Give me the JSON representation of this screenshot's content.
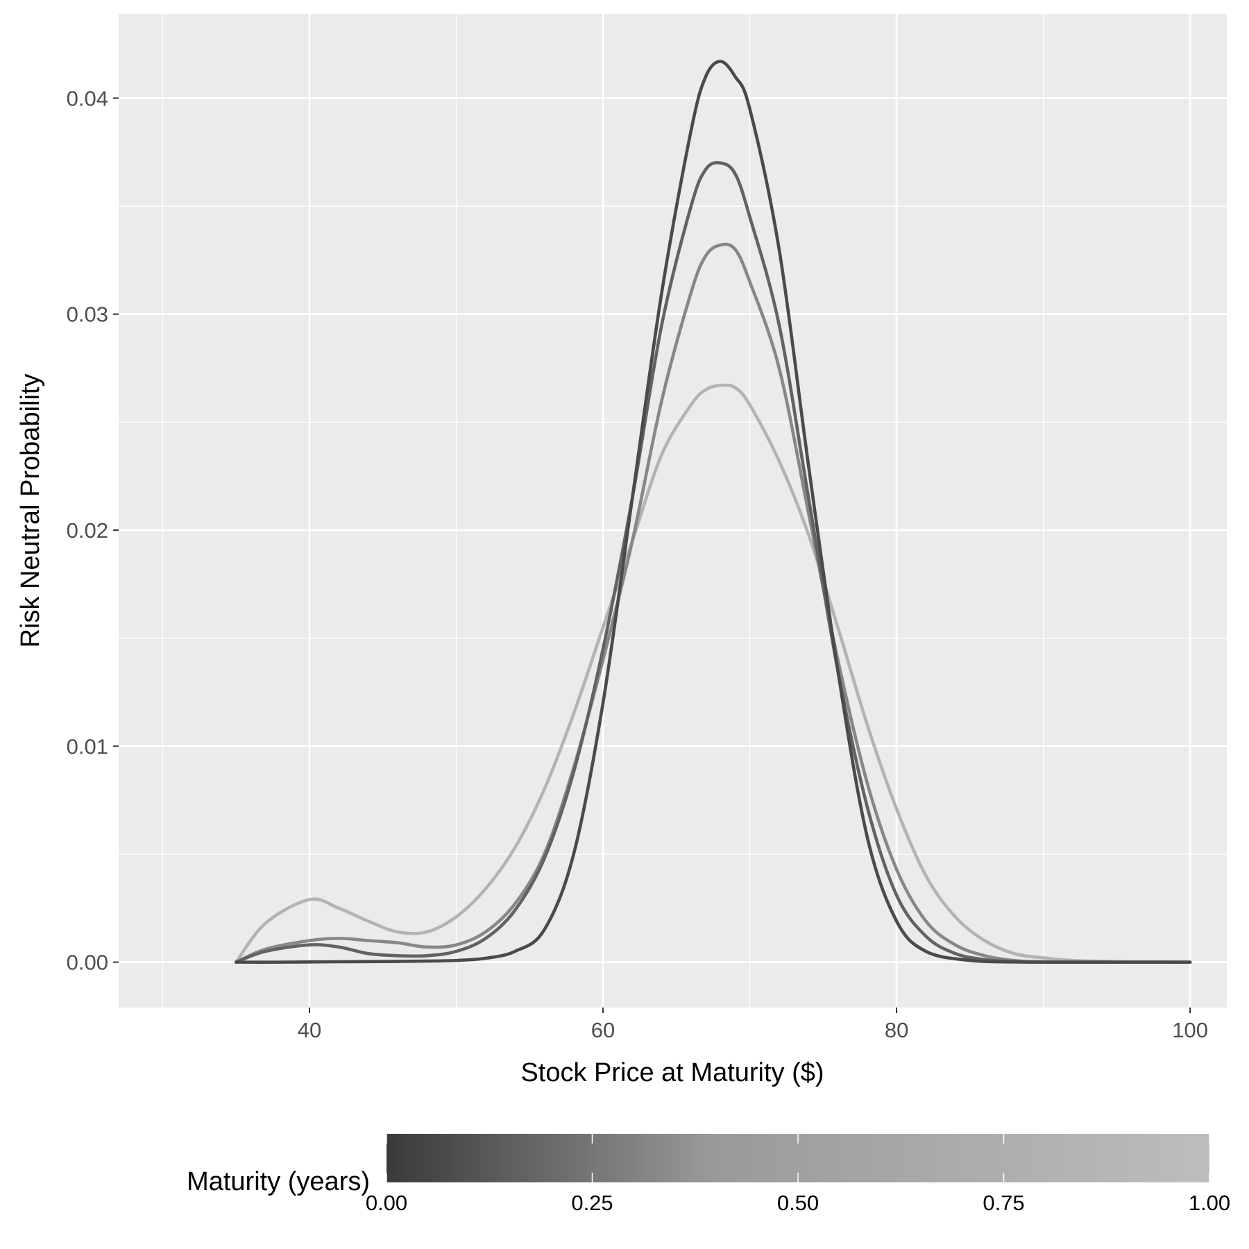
{
  "chart_data": {
    "type": "line",
    "title": "",
    "xlabel": "Stock Price at Maturity ($)",
    "ylabel": "Risk Neutral Probability",
    "xlim": [
      27,
      102.5
    ],
    "ylim": [
      -0.0021,
      0.0439
    ],
    "x_ticks": [
      40,
      60,
      80,
      100
    ],
    "x_tick_labels": [
      "40",
      "60",
      "80",
      "100"
    ],
    "x_minor_ticks": [
      30,
      50,
      70,
      90
    ],
    "y_ticks": [
      0,
      0.01,
      0.02,
      0.03,
      0.04
    ],
    "y_tick_labels": [
      "0.00",
      "0.01",
      "0.02",
      "0.03",
      "0.04"
    ],
    "y_minor_ticks": [
      0.005,
      0.015,
      0.025,
      0.035
    ],
    "grid": true,
    "panel_background": "#ebebeb",
    "grid_color": "#ffffff",
    "legend": {
      "position": "bottom",
      "title": "Maturity (years)",
      "type": "colorbar",
      "ticks": [
        0,
        0.25,
        0.5,
        0.75,
        1
      ],
      "tick_labels": [
        "0.00",
        "0.25",
        "0.50",
        "0.75",
        "1.00"
      ],
      "low_color": "#3a3a3a",
      "high_color": "#bdbdbd"
    },
    "series": [
      {
        "maturity": 0.25,
        "color": "#4a4a4a",
        "points": [
          [
            35,
            0
          ],
          [
            38,
            0
          ],
          [
            40,
            1e-05
          ],
          [
            42,
            2e-05
          ],
          [
            45,
            3e-05
          ],
          [
            48,
            5e-05
          ],
          [
            50,
            8e-05
          ],
          [
            52,
            0.00018
          ],
          [
            54,
            0.0005
          ],
          [
            56,
            0.0015
          ],
          [
            58,
            0.005
          ],
          [
            60,
            0.012
          ],
          [
            62,
            0.0215
          ],
          [
            64,
            0.031
          ],
          [
            66,
            0.0385
          ],
          [
            67,
            0.041
          ],
          [
            68,
            0.0417
          ],
          [
            69,
            0.041
          ],
          [
            70,
            0.0395
          ],
          [
            72,
            0.033
          ],
          [
            74,
            0.023
          ],
          [
            76,
            0.0135
          ],
          [
            78,
            0.0058
          ],
          [
            80,
            0.0019
          ],
          [
            82,
            0.0005
          ],
          [
            85,
            8e-05
          ],
          [
            88,
            1e-05
          ],
          [
            90,
            0
          ],
          [
            95,
            0
          ],
          [
            100,
            0
          ]
        ]
      },
      {
        "maturity": 0.375,
        "color": "#626262",
        "points": [
          [
            35,
            0
          ],
          [
            37,
            0.0005
          ],
          [
            40,
            0.0008
          ],
          [
            42,
            0.0007
          ],
          [
            44,
            0.0004
          ],
          [
            46,
            0.0003
          ],
          [
            48,
            0.0003
          ],
          [
            50,
            0.0005
          ],
          [
            52,
            0.0011
          ],
          [
            54,
            0.0024
          ],
          [
            56,
            0.0048
          ],
          [
            58,
            0.0088
          ],
          [
            60,
            0.0145
          ],
          [
            62,
            0.0215
          ],
          [
            64,
            0.0295
          ],
          [
            66,
            0.035
          ],
          [
            67,
            0.0367
          ],
          [
            68,
            0.037
          ],
          [
            69,
            0.0365
          ],
          [
            70,
            0.0345
          ],
          [
            72,
            0.0295
          ],
          [
            74,
            0.0215
          ],
          [
            76,
            0.0135
          ],
          [
            78,
            0.0072
          ],
          [
            80,
            0.0031
          ],
          [
            82,
            0.0012
          ],
          [
            84,
            0.0004
          ],
          [
            86,
            0.00012
          ],
          [
            88,
            3e-05
          ],
          [
            90,
            0
          ],
          [
            95,
            0
          ],
          [
            100,
            0
          ]
        ]
      },
      {
        "maturity": 0.5,
        "color": "#878787",
        "points": [
          [
            35,
            0
          ],
          [
            37,
            0.0006
          ],
          [
            40,
            0.001
          ],
          [
            42,
            0.0011
          ],
          [
            44,
            0.001
          ],
          [
            46,
            0.0009
          ],
          [
            48,
            0.0007
          ],
          [
            50,
            0.0008
          ],
          [
            52,
            0.0014
          ],
          [
            54,
            0.0027
          ],
          [
            56,
            0.005
          ],
          [
            58,
            0.009
          ],
          [
            60,
            0.014
          ],
          [
            62,
            0.0195
          ],
          [
            64,
            0.026
          ],
          [
            66,
            0.031
          ],
          [
            67,
            0.0327
          ],
          [
            68,
            0.0332
          ],
          [
            69,
            0.033
          ],
          [
            70,
            0.0315
          ],
          [
            72,
            0.0275
          ],
          [
            74,
            0.0208
          ],
          [
            76,
            0.014
          ],
          [
            78,
            0.0083
          ],
          [
            80,
            0.0043
          ],
          [
            82,
            0.0019
          ],
          [
            84,
            0.0008
          ],
          [
            86,
            0.0003
          ],
          [
            88,
            8e-05
          ],
          [
            90,
            2e-05
          ],
          [
            95,
            0
          ],
          [
            100,
            0
          ]
        ]
      },
      {
        "maturity": 0.75,
        "color": "#b3b3b3",
        "points": [
          [
            35,
            0
          ],
          [
            37,
            0.0018
          ],
          [
            40,
            0.0029
          ],
          [
            42,
            0.0025
          ],
          [
            44,
            0.0019
          ],
          [
            46,
            0.0014
          ],
          [
            48,
            0.0014
          ],
          [
            50,
            0.0021
          ],
          [
            52,
            0.0034
          ],
          [
            54,
            0.0053
          ],
          [
            56,
            0.008
          ],
          [
            58,
            0.0115
          ],
          [
            60,
            0.0155
          ],
          [
            62,
            0.0195
          ],
          [
            64,
            0.0235
          ],
          [
            66,
            0.0258
          ],
          [
            67,
            0.0265
          ],
          [
            68,
            0.0267
          ],
          [
            69,
            0.0266
          ],
          [
            70,
            0.0258
          ],
          [
            72,
            0.0232
          ],
          [
            74,
            0.0198
          ],
          [
            76,
            0.0155
          ],
          [
            78,
            0.011
          ],
          [
            80,
            0.0071
          ],
          [
            82,
            0.004
          ],
          [
            84,
            0.0021
          ],
          [
            86,
            0.001
          ],
          [
            88,
            0.0004
          ],
          [
            90,
            0.0002
          ],
          [
            92,
            8e-05
          ],
          [
            95,
            3e-05
          ],
          [
            100,
            0
          ]
        ]
      }
    ]
  }
}
